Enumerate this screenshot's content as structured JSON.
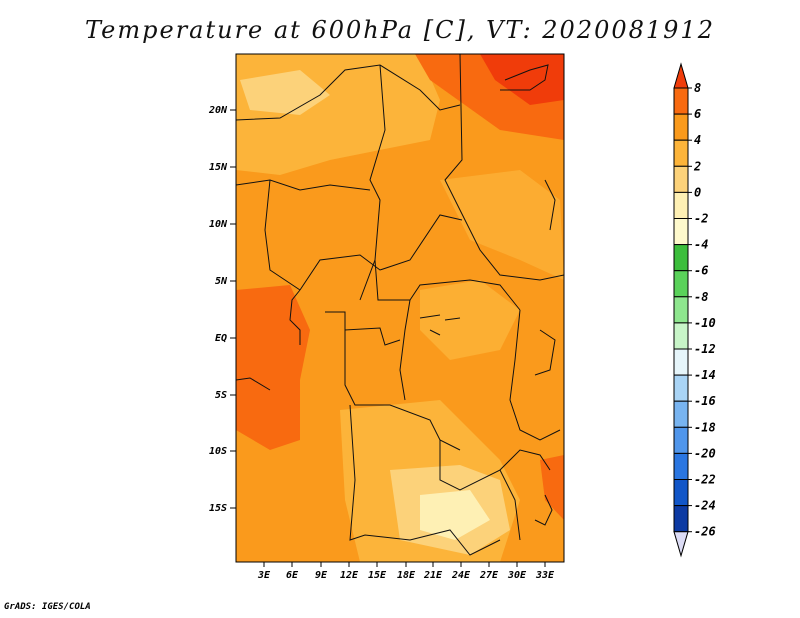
{
  "title": "Temperature at 600hPa [C], VT: 2020081912",
  "credit": "GrADS: IGES/COLA",
  "map": {
    "lat_ticks": [
      "20N",
      "15N",
      "10N",
      "5N",
      "EQ",
      "5S",
      "10S",
      "15S"
    ],
    "lon_ticks": [
      "3E",
      "6E",
      "9E",
      "12E",
      "15E",
      "18E",
      "21E",
      "24E",
      "27E",
      "30E",
      "33E"
    ]
  },
  "colorbar": {
    "labels": [
      "8",
      "6",
      "4",
      "2",
      "0",
      "-2",
      "-4",
      "-6",
      "-8",
      "-10",
      "-12",
      "-14",
      "-16",
      "-18",
      "-20",
      "-22",
      "-24",
      "-26"
    ],
    "colors": [
      "#f03c0a",
      "#f86a10",
      "#fa9a1c",
      "#fcb43a",
      "#fcd27a",
      "#fef0b4",
      "#fef9cc",
      "#3cbe3c",
      "#5ad25a",
      "#8ee68e",
      "#c8f5c8",
      "#e6f5fa",
      "#a9d4f5",
      "#78b4f0",
      "#5096eb",
      "#2a76e1",
      "#1156c8",
      "#0c3aa3",
      "#061a80",
      "#dcdcf5"
    ]
  },
  "colors": {
    "hot": "#f86a10",
    "warm": "#fa9a1c",
    "mild": "#fcb43a",
    "cool": "#fcd27a",
    "pale": "#fef0b4",
    "red": "#f03c0a"
  }
}
